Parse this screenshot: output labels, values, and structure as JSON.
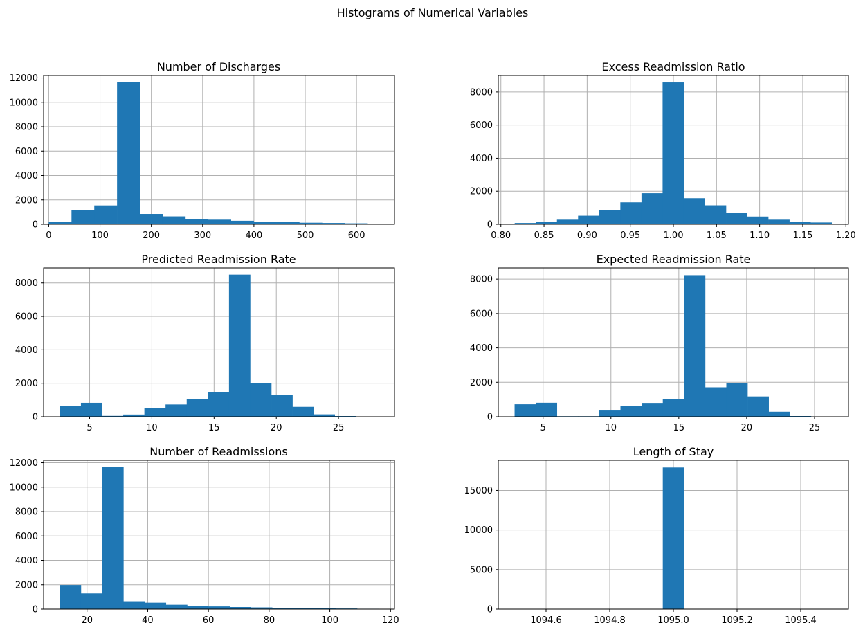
{
  "suptitle": "Histograms of Numerical Variables",
  "colors": {
    "bar": "#1f77b4",
    "grid": "#b0b0b0"
  },
  "chart_data": [
    {
      "type": "bar",
      "title": "Number of Discharges",
      "grid": true,
      "xlim": [
        -10,
        674
      ],
      "ylim": [
        0,
        12200
      ],
      "xticks": [
        0,
        100,
        200,
        300,
        400,
        500,
        600
      ],
      "xtick_labels": [
        "0",
        "100",
        "200",
        "300",
        "400",
        "500",
        "600"
      ],
      "yticks": [
        0,
        2000,
        4000,
        6000,
        8000,
        10000,
        12000
      ],
      "ytick_labels": [
        "0",
        "2000",
        "4000",
        "6000",
        "8000",
        "10000",
        "12000"
      ],
      "bin_edges": [
        0,
        44.4,
        88.8,
        133.2,
        177.6,
        222,
        266.4,
        310.8,
        355.2,
        399.6,
        444,
        488.4,
        532.8,
        577.2,
        621.6,
        666
      ],
      "values": [
        220,
        1150,
        1550,
        11650,
        850,
        650,
        450,
        380,
        290,
        220,
        170,
        130,
        110,
        80,
        50
      ]
    },
    {
      "type": "bar",
      "title": "Excess Readmission Ratio",
      "grid": true,
      "xlim": [
        0.797,
        1.203
      ],
      "ylim": [
        0,
        9000
      ],
      "xticks": [
        0.8,
        0.85,
        0.9,
        0.95,
        1.0,
        1.05,
        1.1,
        1.15,
        1.2
      ],
      "xtick_labels": [
        "0.80",
        "0.85",
        "0.90",
        "0.95",
        "1.00",
        "1.05",
        "1.10",
        "1.15",
        "1.20"
      ],
      "yticks": [
        0,
        2000,
        4000,
        6000,
        8000
      ],
      "ytick_labels": [
        "0",
        "2000",
        "4000",
        "6000",
        "8000"
      ],
      "bin_edges": [
        0.816,
        0.8405,
        0.865,
        0.8895,
        0.914,
        0.9385,
        0.963,
        0.9875,
        1.012,
        1.0365,
        1.061,
        1.0855,
        1.11,
        1.1345,
        1.159,
        1.1835
      ],
      "values": [
        80,
        140,
        280,
        520,
        860,
        1330,
        1880,
        8580,
        1580,
        1150,
        700,
        470,
        280,
        160,
        110
      ]
    },
    {
      "type": "bar",
      "title": "Predicted Readmission Rate",
      "grid": true,
      "xlim": [
        1.3,
        29.5
      ],
      "ylim": [
        0,
        8900
      ],
      "xticks": [
        5,
        10,
        15,
        20,
        25
      ],
      "xtick_labels": [
        "5",
        "10",
        "15",
        "20",
        "25"
      ],
      "yticks": [
        0,
        2000,
        4000,
        6000,
        8000
      ],
      "ytick_labels": [
        "0",
        "2000",
        "4000",
        "6000",
        "8000"
      ],
      "bin_edges": [
        2.6,
        4.3,
        6.0,
        7.7,
        9.4,
        11.1,
        12.8,
        14.5,
        16.2,
        17.9,
        19.6,
        21.3,
        23.0,
        24.7,
        26.4,
        28.1
      ],
      "values": [
        630,
        830,
        50,
        130,
        500,
        730,
        1060,
        1470,
        8500,
        1990,
        1310,
        590,
        140,
        40,
        10
      ]
    },
    {
      "type": "bar",
      "title": "Expected Readmission Rate",
      "grid": true,
      "xlim": [
        1.7,
        27.5
      ],
      "ylim": [
        0,
        8650
      ],
      "xticks": [
        5,
        10,
        15,
        20,
        25
      ],
      "xtick_labels": [
        "5",
        "10",
        "15",
        "20",
        "25"
      ],
      "yticks": [
        0,
        2000,
        4000,
        6000,
        8000
      ],
      "ytick_labels": [
        "0",
        "2000",
        "4000",
        "6000",
        "8000"
      ],
      "bin_edges": [
        2.9,
        4.46,
        6.02,
        7.58,
        9.14,
        10.7,
        12.26,
        13.82,
        15.38,
        16.94,
        18.5,
        20.06,
        21.62,
        23.18,
        24.74,
        26.3
      ],
      "values": [
        720,
        810,
        30,
        30,
        360,
        610,
        800,
        1020,
        8230,
        1710,
        1970,
        1180,
        290,
        40,
        10
      ]
    },
    {
      "type": "bar",
      "title": "Number of Readmissions",
      "grid": true,
      "xlim": [
        5.7,
        121.3
      ],
      "ylim": [
        0,
        12200
      ],
      "xticks": [
        20,
        40,
        60,
        80,
        100,
        120
      ],
      "xtick_labels": [
        "20",
        "40",
        "60",
        "80",
        "100",
        "120"
      ],
      "yticks": [
        0,
        2000,
        4000,
        6000,
        8000,
        10000,
        12000
      ],
      "ytick_labels": [
        "0",
        "2000",
        "4000",
        "6000",
        "8000",
        "10000",
        "12000"
      ],
      "bin_edges": [
        11,
        18,
        25,
        32,
        39,
        46,
        53,
        60,
        67,
        74,
        81,
        88,
        95,
        102,
        109,
        116
      ],
      "values": [
        1980,
        1290,
        11650,
        650,
        530,
        360,
        280,
        220,
        170,
        140,
        110,
        90,
        70,
        50,
        30
      ]
    },
    {
      "type": "bar",
      "title": "Length of Stay",
      "grid": true,
      "xlim": [
        1094.45,
        1095.55
      ],
      "ylim": [
        0,
        18800
      ],
      "xticks": [
        1094.6,
        1094.8,
        1095.0,
        1095.2,
        1095.4
      ],
      "xtick_labels": [
        "1094.6",
        "1094.8",
        "1095.0",
        "1095.2",
        "1095.4"
      ],
      "yticks": [
        0,
        5000,
        10000,
        15000
      ],
      "ytick_labels": [
        "0",
        "5000",
        "10000",
        "15000"
      ],
      "bin_edges": [
        1094.5,
        1094.5667,
        1094.6333,
        1094.7,
        1094.7667,
        1094.8333,
        1094.9,
        1094.9667,
        1095.0333,
        1095.1,
        1095.1667,
        1095.2333,
        1095.3,
        1095.3667,
        1095.4333,
        1095.5
      ],
      "values": [
        0,
        0,
        0,
        0,
        0,
        0,
        0,
        17900,
        0,
        0,
        0,
        0,
        0,
        0,
        0
      ]
    }
  ]
}
